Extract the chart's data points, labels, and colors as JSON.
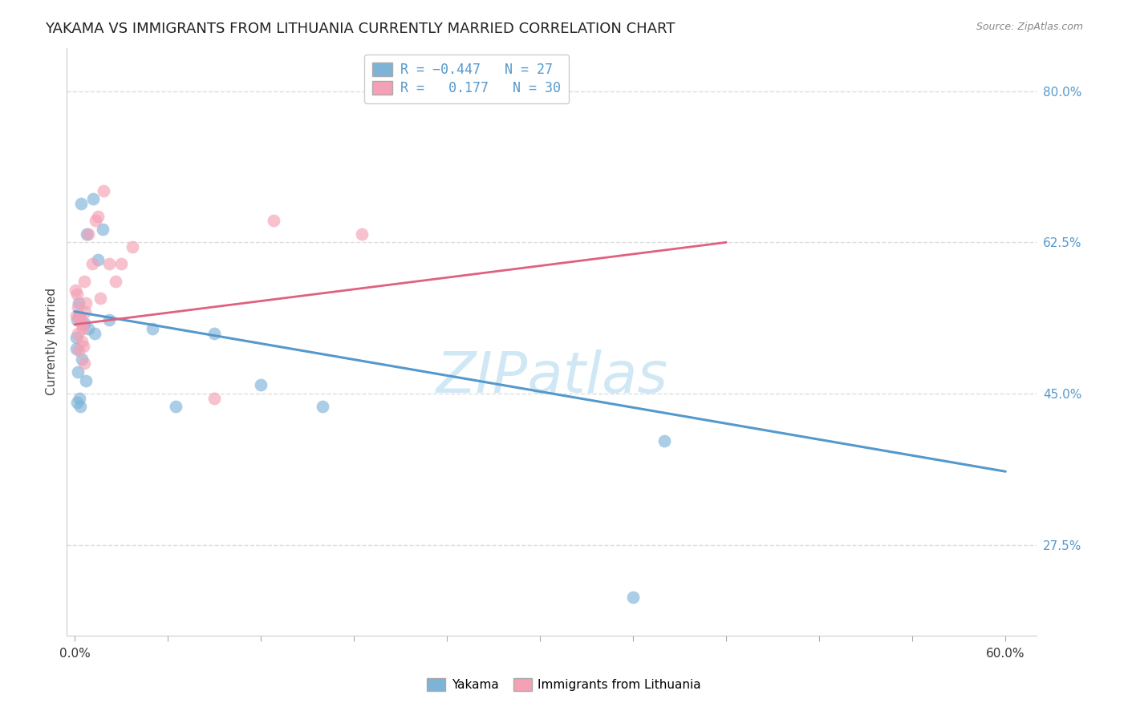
{
  "title": "YAKAMA VS IMMIGRANTS FROM LITHUANIA CURRENTLY MARRIED CORRELATION CHART",
  "source": "Source: ZipAtlas.com",
  "ylabel": "Currently Married",
  "y_axis_ticks": [
    27.5,
    45.0,
    62.5,
    80.0
  ],
  "legend_labels_bottom": [
    "Yakama",
    "Immigrants from Lithuania"
  ],
  "blue_scatter_x": [
    0.4,
    1.2,
    1.8,
    0.8,
    1.5,
    2.2,
    0.25,
    0.6,
    0.9,
    1.3,
    0.45,
    0.75,
    0.3,
    0.15,
    0.08,
    0.22,
    0.38,
    0.12,
    0.18,
    0.28,
    5.0,
    6.5,
    9.0,
    12.0,
    16.0,
    38.0,
    36.0
  ],
  "blue_scatter_y": [
    67.0,
    67.5,
    64.0,
    63.5,
    60.5,
    53.5,
    55.5,
    53.2,
    52.5,
    52.0,
    49.0,
    46.5,
    44.5,
    44.0,
    50.2,
    47.5,
    43.5,
    51.5,
    53.5,
    54.0,
    52.5,
    43.5,
    52.0,
    46.0,
    43.5,
    39.5,
    21.5
  ],
  "pink_scatter_x": [
    0.07,
    0.15,
    0.22,
    0.3,
    0.38,
    0.45,
    0.52,
    0.6,
    0.68,
    0.75,
    0.9,
    1.12,
    1.5,
    1.87,
    2.25,
    2.62,
    3.0,
    3.75,
    0.11,
    0.19,
    0.26,
    0.41,
    0.49,
    0.56,
    0.64,
    1.35,
    1.65,
    9.0,
    12.8,
    18.5
  ],
  "pink_scatter_y": [
    57.0,
    56.5,
    55.0,
    54.0,
    53.5,
    53.0,
    52.5,
    58.0,
    54.5,
    55.5,
    63.5,
    60.0,
    65.5,
    68.5,
    60.0,
    58.0,
    60.0,
    62.0,
    54.0,
    52.0,
    50.0,
    53.5,
    51.0,
    50.5,
    48.5,
    65.0,
    56.0,
    44.5,
    65.0,
    63.5
  ],
  "blue_line_x": [
    0.0,
    60.0
  ],
  "blue_line_y": [
    54.5,
    36.0
  ],
  "pink_line_x": [
    0.0,
    42.0
  ],
  "pink_line_y": [
    53.0,
    62.5
  ],
  "xlim_min": -0.5,
  "xlim_max": 62.0,
  "ylim_min": 17.0,
  "ylim_max": 85.0,
  "title_color": "#222222",
  "title_fontsize": 13,
  "source_fontsize": 9,
  "source_color": "#888888",
  "grid_color": "#dddddd",
  "blue_color": "#7EB3D8",
  "pink_color": "#F4A0B5",
  "blue_line_color": "#5599CC",
  "pink_line_color": "#E06080",
  "watermark": "ZIPatlas",
  "watermark_color": "#d0e8f5",
  "watermark_fontsize": 52,
  "num_x_ticks": 11,
  "x_tick_max": 60.0
}
